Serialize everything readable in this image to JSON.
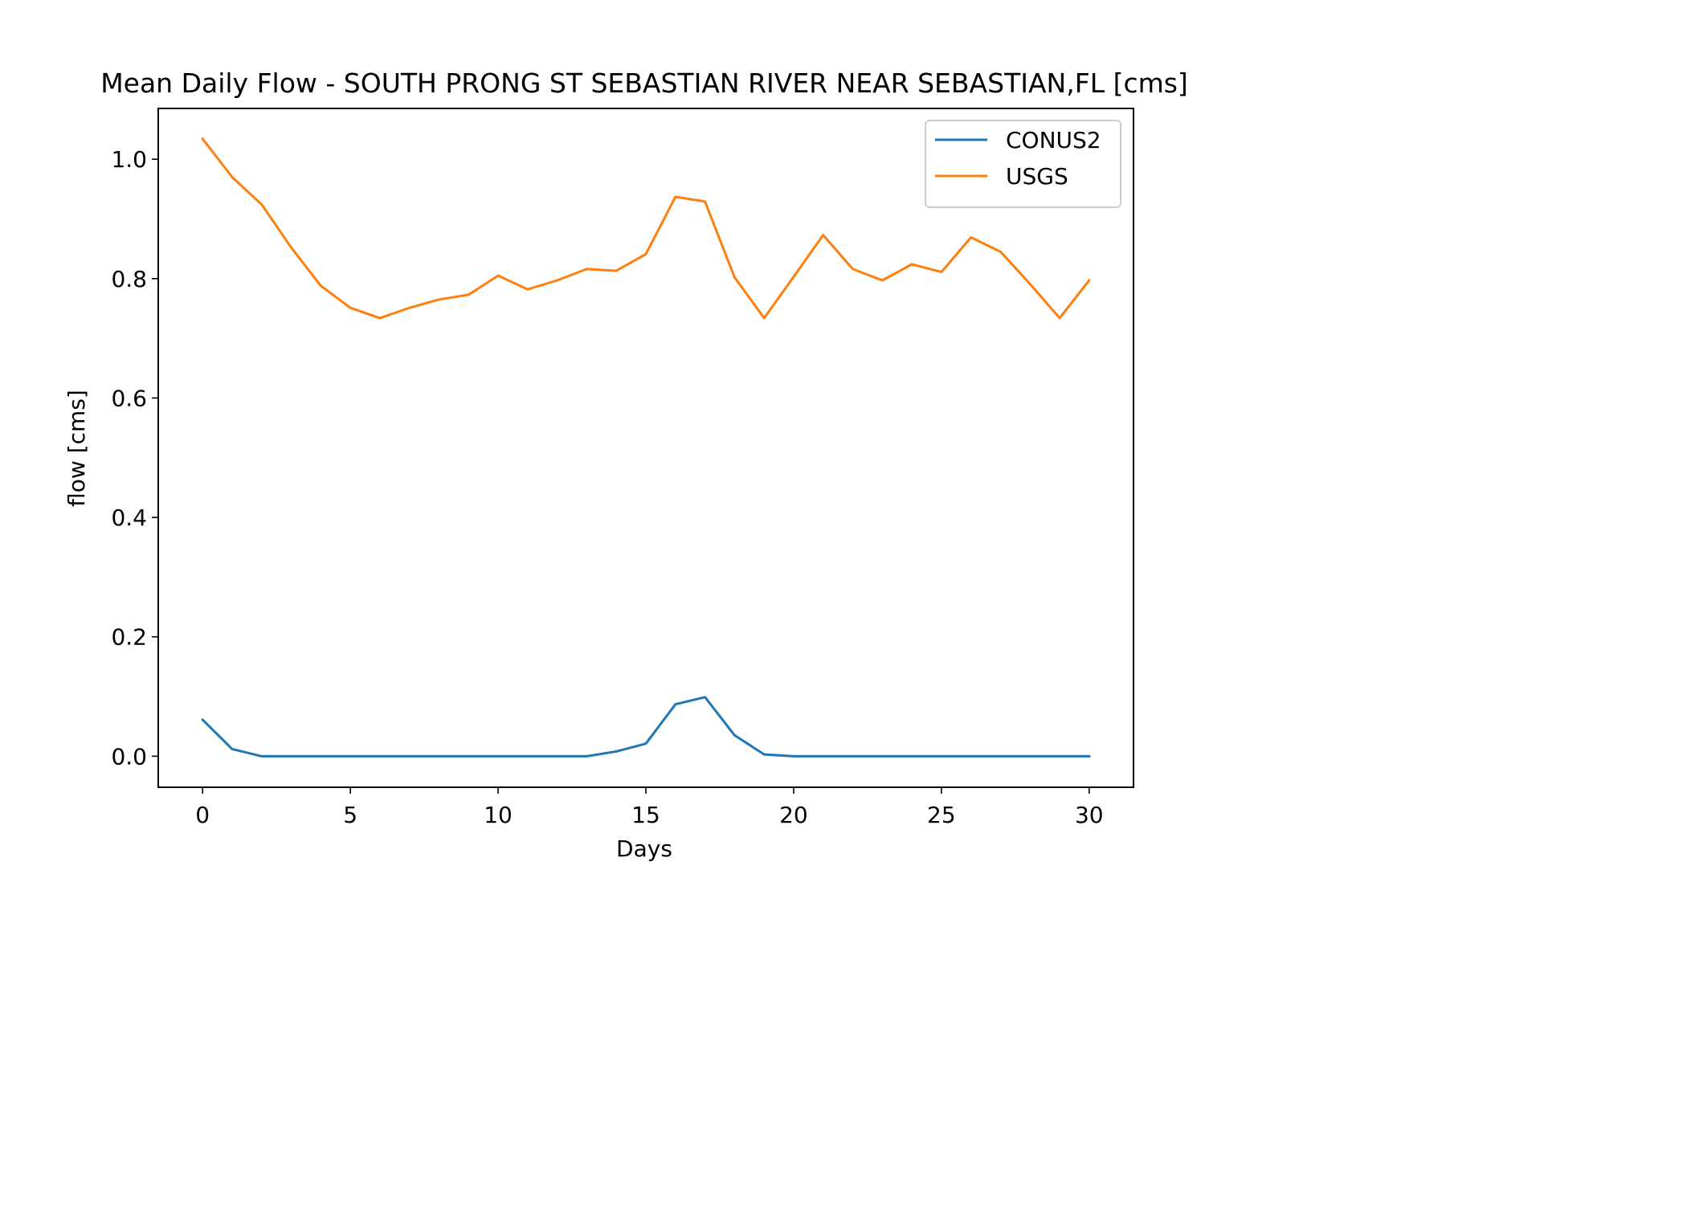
{
  "chart_data": {
    "type": "line",
    "title": "Mean Daily Flow - SOUTH PRONG ST SEBASTIAN RIVER NEAR SEBASTIAN,FL [cms]",
    "xlabel": "Days",
    "ylabel": "flow [cms]",
    "xlim": [
      -1.5,
      31.5
    ],
    "ylim": [
      -0.052,
      1.085
    ],
    "xticks": [
      0,
      5,
      10,
      15,
      20,
      25,
      30
    ],
    "xtick_labels": [
      "0",
      "5",
      "10",
      "15",
      "20",
      "25",
      "30"
    ],
    "yticks": [
      0.0,
      0.2,
      0.4,
      0.6,
      0.8,
      1.0
    ],
    "ytick_labels": [
      "0.0",
      "0.2",
      "0.4",
      "0.6",
      "0.8",
      "1.0"
    ],
    "grid": false,
    "legend_position": "upper right",
    "x": [
      0,
      1,
      2,
      3,
      4,
      5,
      6,
      7,
      8,
      9,
      10,
      11,
      12,
      13,
      14,
      15,
      16,
      17,
      18,
      19,
      20,
      21,
      22,
      23,
      24,
      25,
      26,
      27,
      28,
      29,
      30
    ],
    "series": [
      {
        "name": "CONUS2",
        "color": "#1f77b4",
        "values": [
          0.061,
          0.012,
          0.0,
          0.0,
          0.0,
          0.0,
          0.0,
          0.0,
          0.0,
          0.0,
          0.0,
          0.0,
          0.0,
          0.0,
          0.008,
          0.021,
          0.087,
          0.099,
          0.035,
          0.003,
          0.0,
          0.0,
          0.0,
          0.0,
          0.0,
          0.0,
          0.0,
          0.0,
          0.0,
          0.0,
          0.0
        ]
      },
      {
        "name": "USGS",
        "color": "#ff7f0e",
        "values": [
          1.034,
          0.97,
          0.924,
          0.852,
          0.788,
          0.751,
          0.734,
          0.751,
          0.765,
          0.773,
          0.805,
          0.782,
          0.797,
          0.816,
          0.813,
          0.841,
          0.937,
          0.929,
          0.802,
          0.734,
          0.803,
          0.873,
          0.816,
          0.797,
          0.824,
          0.811,
          0.869,
          0.845,
          0.791,
          0.734,
          0.797
        ]
      }
    ]
  }
}
